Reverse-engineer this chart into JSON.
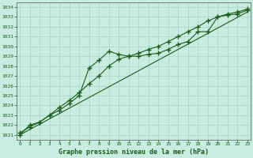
{
  "title": "Graphe pression niveau de la mer (hPa)",
  "bg_color": "#c8ece0",
  "line_color": "#1a5c1a",
  "grid_color": "#a8d4c4",
  "ylim": [
    1020.5,
    1034.5
  ],
  "xlim": [
    -0.3,
    23.3
  ],
  "yticks": [
    1021,
    1022,
    1023,
    1024,
    1025,
    1026,
    1027,
    1028,
    1029,
    1030,
    1031,
    1032,
    1033,
    1034
  ],
  "xticks": [
    0,
    1,
    2,
    3,
    4,
    5,
    6,
    7,
    8,
    9,
    10,
    11,
    12,
    13,
    14,
    15,
    16,
    17,
    18,
    19,
    20,
    21,
    22,
    23
  ],
  "series1_x": [
    0,
    1,
    2,
    3,
    4,
    5,
    6,
    7,
    8,
    9,
    10,
    11,
    12,
    13,
    14,
    15,
    16,
    17,
    18,
    19,
    20,
    21,
    22,
    23
  ],
  "series1_y": [
    1021.0,
    1022.0,
    1022.3,
    1023.0,
    1023.5,
    1024.2,
    1025.0,
    1027.8,
    1028.6,
    1029.5,
    1029.2,
    1029.0,
    1029.0,
    1029.2,
    1029.3,
    1029.7,
    1030.2,
    1030.5,
    1031.5,
    1031.5,
    1033.0,
    1033.2,
    1033.3,
    1033.7
  ],
  "series2_x": [
    0,
    1,
    2,
    3,
    4,
    5,
    6,
    7,
    8,
    9,
    10,
    11,
    12,
    13,
    14,
    15,
    16,
    17,
    18,
    19,
    20,
    21,
    22,
    23
  ],
  "series2_y": [
    1021.2,
    1021.8,
    1022.3,
    1023.0,
    1023.8,
    1024.5,
    1025.3,
    1026.2,
    1027.0,
    1028.0,
    1028.7,
    1029.0,
    1029.3,
    1029.7,
    1030.0,
    1030.5,
    1031.0,
    1031.5,
    1032.0,
    1032.6,
    1033.0,
    1033.3,
    1033.5,
    1033.8
  ],
  "series3_x": [
    0,
    23
  ],
  "series3_y": [
    1021.0,
    1033.5
  ]
}
